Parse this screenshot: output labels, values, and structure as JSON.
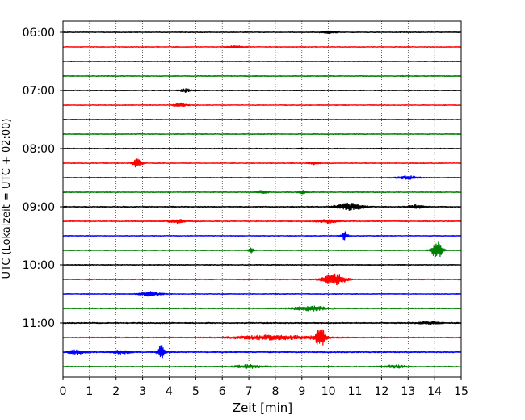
{
  "chart_data": {
    "type": "line",
    "title": "",
    "xlabel": "Zeit  [min]",
    "ylabel": "UTC (Lokalzeit = UTC + 02:00)",
    "xlim": [
      0,
      15
    ],
    "xticks": [
      0,
      1,
      2,
      3,
      4,
      5,
      6,
      7,
      8,
      9,
      10,
      11,
      12,
      13,
      14,
      15
    ],
    "grid": "vertical dotted",
    "legend": "none",
    "trace_interval_minutes": 15,
    "y_tick_labels": [
      "06:00",
      "07:00",
      "08:00",
      "09:00",
      "10:00",
      "11:00"
    ],
    "color_cycle": [
      "#000000",
      "#ff0000",
      "#0000ff",
      "#008000"
    ],
    "traces": [
      {
        "start": "06:00",
        "color": "#000000",
        "noise": 0.5,
        "events": [
          {
            "t": 10.0,
            "amp": 1.2,
            "width": 0.3
          }
        ]
      },
      {
        "start": "06:15",
        "color": "#ff0000",
        "noise": 0.5,
        "events": [
          {
            "t": 6.5,
            "amp": 1.0,
            "width": 0.3
          }
        ]
      },
      {
        "start": "06:30",
        "color": "#0000ff",
        "noise": 0.5,
        "events": []
      },
      {
        "start": "06:45",
        "color": "#008000",
        "noise": 0.55,
        "events": []
      },
      {
        "start": "07:00",
        "color": "#000000",
        "noise": 0.55,
        "events": [
          {
            "t": 4.6,
            "amp": 1.5,
            "width": 0.2
          }
        ]
      },
      {
        "start": "07:15",
        "color": "#ff0000",
        "noise": 0.5,
        "events": [
          {
            "t": 4.4,
            "amp": 1.8,
            "width": 0.25
          }
        ]
      },
      {
        "start": "07:30",
        "color": "#0000ff",
        "noise": 0.5,
        "events": []
      },
      {
        "start": "07:45",
        "color": "#008000",
        "noise": 0.55,
        "events": []
      },
      {
        "start": "08:00",
        "color": "#000000",
        "noise": 0.6,
        "events": []
      },
      {
        "start": "08:15",
        "color": "#ff0000",
        "noise": 0.55,
        "events": [
          {
            "t": 2.8,
            "amp": 4.0,
            "width": 0.15
          },
          {
            "t": 9.5,
            "amp": 1.3,
            "width": 0.2
          }
        ]
      },
      {
        "start": "08:30",
        "color": "#0000ff",
        "noise": 0.5,
        "events": [
          {
            "t": 13.0,
            "amp": 1.5,
            "width": 0.4
          }
        ]
      },
      {
        "start": "08:45",
        "color": "#008000",
        "noise": 0.55,
        "events": [
          {
            "t": 7.5,
            "amp": 1.3,
            "width": 0.2
          },
          {
            "t": 9.0,
            "amp": 1.6,
            "width": 0.15
          }
        ]
      },
      {
        "start": "09:00",
        "color": "#000000",
        "noise": 0.6,
        "events": [
          {
            "t": 10.8,
            "amp": 3.0,
            "width": 0.5
          },
          {
            "t": 13.3,
            "amp": 1.4,
            "width": 0.3
          }
        ]
      },
      {
        "start": "09:15",
        "color": "#ff0000",
        "noise": 0.6,
        "events": [
          {
            "t": 4.3,
            "amp": 1.6,
            "width": 0.3
          },
          {
            "t": 10.0,
            "amp": 1.5,
            "width": 0.4
          }
        ]
      },
      {
        "start": "09:30",
        "color": "#0000ff",
        "noise": 0.5,
        "events": [
          {
            "t": 10.6,
            "amp": 3.5,
            "width": 0.12
          }
        ]
      },
      {
        "start": "09:45",
        "color": "#008000",
        "noise": 0.55,
        "events": [
          {
            "t": 14.1,
            "amp": 8.0,
            "width": 0.2
          },
          {
            "t": 7.1,
            "amp": 2.0,
            "width": 0.1
          }
        ]
      },
      {
        "start": "10:00",
        "color": "#000000",
        "noise": 0.55,
        "events": []
      },
      {
        "start": "10:15",
        "color": "#ff0000",
        "noise": 0.6,
        "events": [
          {
            "t": 10.2,
            "amp": 5.5,
            "width": 0.4
          }
        ]
      },
      {
        "start": "10:30",
        "color": "#0000ff",
        "noise": 0.5,
        "events": [
          {
            "t": 3.3,
            "amp": 2.0,
            "width": 0.4
          }
        ]
      },
      {
        "start": "10:45",
        "color": "#008000",
        "noise": 0.65,
        "events": [
          {
            "t": 9.3,
            "amp": 2.0,
            "width": 0.6
          }
        ]
      },
      {
        "start": "11:00",
        "color": "#000000",
        "noise": 0.7,
        "events": [
          {
            "t": 13.8,
            "amp": 1.3,
            "width": 0.4
          }
        ]
      },
      {
        "start": "11:15",
        "color": "#ff0000",
        "noise": 0.65,
        "events": [
          {
            "t": 9.7,
            "amp": 7.0,
            "width": 0.2
          },
          {
            "t": 8.0,
            "amp": 2.0,
            "width": 1.5
          }
        ]
      },
      {
        "start": "11:30",
        "color": "#0000ff",
        "noise": 0.75,
        "events": [
          {
            "t": 3.7,
            "amp": 6.0,
            "width": 0.12
          },
          {
            "t": 0.5,
            "amp": 1.6,
            "width": 0.3
          },
          {
            "t": 2.2,
            "amp": 1.6,
            "width": 0.3
          }
        ]
      },
      {
        "start": "11:45",
        "color": "#008000",
        "noise": 0.6,
        "events": [
          {
            "t": 7.0,
            "amp": 1.5,
            "width": 0.5
          },
          {
            "t": 12.5,
            "amp": 1.3,
            "width": 0.4
          }
        ]
      }
    ]
  }
}
